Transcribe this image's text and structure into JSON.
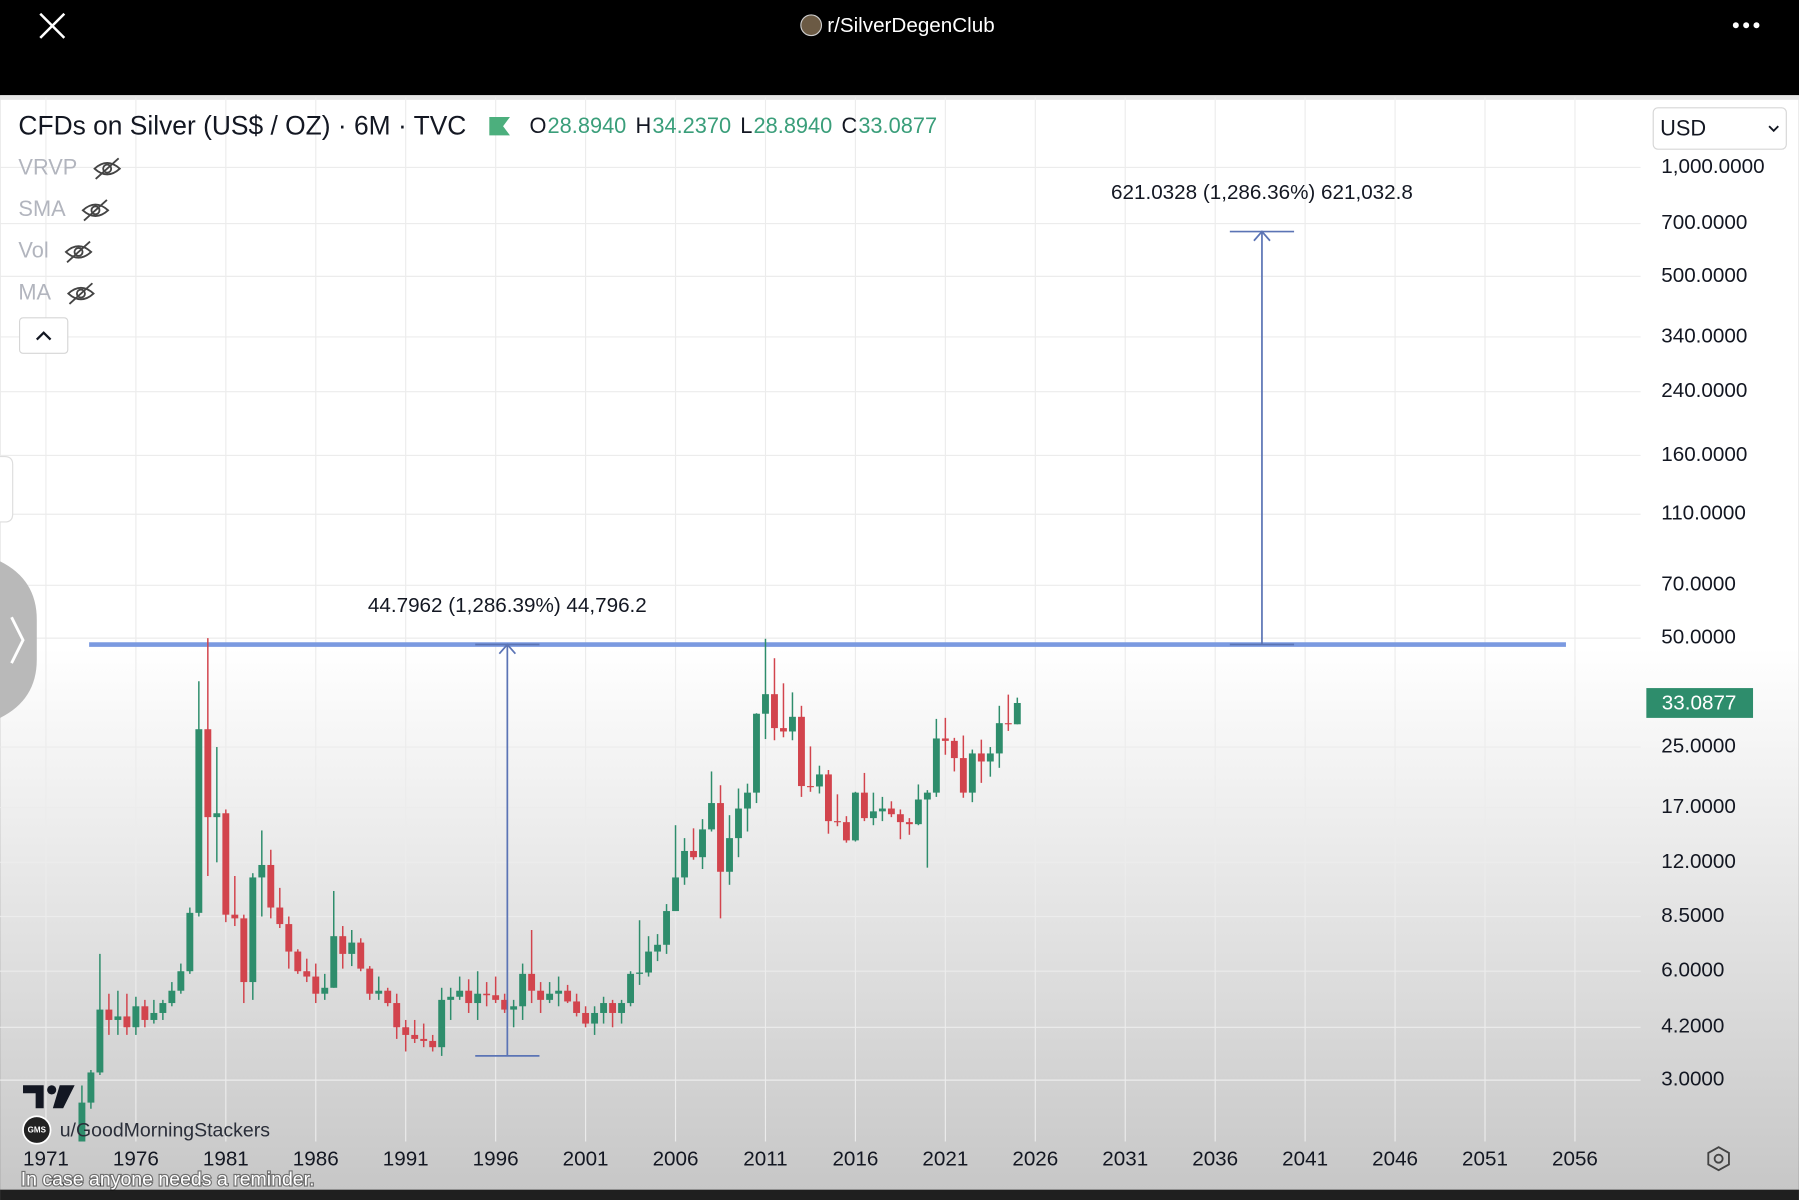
{
  "app_bar": {
    "subreddit": "r/SilverDegenClub"
  },
  "chart_data": {
    "type": "candlestick",
    "title": "CFDs on Silver (US$ / OZ) · 6M · TVC",
    "ohlc": [
      {
        "key": "O",
        "value": 28.894,
        "label": "28.8940"
      },
      {
        "key": "H",
        "value": 34.237,
        "label": "34.2370"
      },
      {
        "key": "L",
        "value": 28.894,
        "label": "28.8940"
      },
      {
        "key": "C",
        "value": 33.0877,
        "label": "33.0877"
      }
    ],
    "indicators": [
      "VRVP",
      "SMA",
      "Vol",
      "MA"
    ],
    "currency": "USD",
    "x": [
      1973,
      1973.5,
      1974,
      1974.5,
      1975,
      1975.5,
      1976,
      1976.5,
      1977,
      1977.5,
      1978,
      1978.5,
      1979,
      1979.5,
      1980,
      1980.5,
      1981,
      1981.5,
      1982,
      1982.5,
      1983,
      1983.5,
      1984,
      1984.5,
      1985,
      1985.5,
      1986,
      1986.5,
      1987,
      1987.5,
      1988,
      1988.5,
      1989,
      1989.5,
      1990,
      1990.5,
      1991,
      1991.5,
      1992,
      1992.5,
      1993,
      1993.5,
      1994,
      1994.5,
      1995,
      1995.5,
      1996,
      1996.5,
      1997,
      1997.5,
      1998,
      1998.5,
      1999,
      1999.5,
      2000,
      2000.5,
      2001,
      2001.5,
      2002,
      2002.5,
      2003,
      2003.5,
      2004,
      2004.5,
      2005,
      2005.5,
      2006,
      2006.5,
      2007,
      2007.5,
      2008,
      2008.5,
      2009,
      2009.5,
      2010,
      2010.5,
      2011,
      2011.5,
      2012,
      2012.5,
      2013,
      2013.5,
      2014,
      2014.5,
      2015,
      2015.5,
      2016,
      2016.5,
      2017,
      2017.5,
      2018,
      2018.5,
      2019,
      2019.5,
      2020,
      2020.5,
      2021,
      2021.5,
      2022,
      2022.5,
      2023,
      2023.5,
      2024,
      2024.5,
      2025
    ],
    "open": [
      1.96,
      2.6,
      3.15,
      4.7,
      4.4,
      4.5,
      4.2,
      4.8,
      4.4,
      4.6,
      4.9,
      5.3,
      6.0,
      8.7,
      28,
      16,
      16.4,
      8.6,
      8.4,
      5.6,
      10.9,
      11.8,
      9.0,
      8.1,
      6.8,
      6.0,
      5.8,
      5.2,
      5.4,
      7.5,
      6.7,
      7.2,
      6.1,
      5.2,
      5.3,
      4.9,
      4.2,
      4.0,
      3.9,
      3.85,
      3.7,
      5.0,
      5.1,
      5.3,
      4.9,
      5.2,
      5.15,
      5.0,
      4.7,
      4.8,
      5.9,
      5.3,
      5.0,
      5.2,
      5.3,
      4.95,
      4.6,
      4.3,
      4.6,
      4.9,
      4.6,
      4.9,
      5.9,
      5.95,
      6.8,
      7.1,
      8.8,
      10.9,
      12.9,
      12.4,
      14.8,
      17.5,
      11.3,
      14.0,
      16.9,
      18.7,
      30.9,
      35.0,
      28.2,
      27.6,
      30.3,
      19.5,
      19.45,
      21.0,
      15.6,
      15.5,
      13.8,
      18.7,
      15.9,
      16.6,
      16.9,
      16.3,
      15.5,
      15.3,
      17.9,
      18.7,
      26.4,
      26.0,
      23.3,
      18.7,
      24.0,
      22.8,
      24.0,
      29.1,
      28.894
    ],
    "high": [
      2.9,
      3.2,
      6.7,
      5.2,
      5.3,
      5.2,
      5.1,
      5.0,
      5.0,
      5.0,
      5.6,
      6.3,
      9.0,
      38,
      50,
      25,
      16.8,
      11,
      8.6,
      11.2,
      14.7,
      13,
      10.2,
      8.5,
      6.9,
      6.5,
      6.3,
      5.9,
      10.0,
      8.0,
      7.8,
      7.4,
      6.2,
      5.8,
      5.4,
      5.2,
      4.4,
      4.4,
      4.3,
      4.0,
      5.4,
      5.4,
      5.8,
      5.7,
      6.0,
      5.6,
      5.8,
      5.2,
      5.0,
      6.3,
      7.8,
      5.6,
      5.6,
      5.8,
      5.5,
      5.2,
      4.8,
      4.8,
      5.1,
      5.0,
      5.0,
      6.0,
      8.3,
      7.5,
      7.6,
      9.2,
      15.2,
      14.0,
      14.9,
      15.8,
      21.4,
      19.6,
      16.2,
      19.2,
      19.8,
      31.0,
      49.8,
      44.0,
      37.5,
      35.4,
      32.5,
      25.1,
      22.2,
      21.6,
      18.5,
      16.1,
      18.8,
      21.2,
      18.7,
      18.2,
      17.7,
      16.8,
      15.9,
      19.7,
      19.0,
      29.9,
      30.1,
      26.5,
      26.9,
      24.6,
      26.2,
      25.0,
      32.5,
      34.9,
      34.237
    ],
    "low": [
      1.95,
      2.5,
      3.1,
      4.0,
      4.0,
      4.0,
      4.0,
      4.2,
      4.3,
      4.4,
      4.8,
      5.2,
      5.9,
      8.5,
      11,
      12,
      8.2,
      8.0,
      4.9,
      5.0,
      8.5,
      8.4,
      7.9,
      6.1,
      5.9,
      5.6,
      4.9,
      5.0,
      5.4,
      6.1,
      6.2,
      6.0,
      5.0,
      5.0,
      4.8,
      3.9,
      3.6,
      3.8,
      3.7,
      3.6,
      3.5,
      4.4,
      5.0,
      4.6,
      4.4,
      4.8,
      4.9,
      4.6,
      4.2,
      4.4,
      4.9,
      4.6,
      4.9,
      4.8,
      4.9,
      4.5,
      4.2,
      4.0,
      4.3,
      4.2,
      4.3,
      4.8,
      5.5,
      5.8,
      6.4,
      6.7,
      8.8,
      10.4,
      12.2,
      11.5,
      14.6,
      8.4,
      10.4,
      12.4,
      14.6,
      17.5,
      26.3,
      26.1,
      26.6,
      26.1,
      18.2,
      18.8,
      18.6,
      14.4,
      15.1,
      13.6,
      13.7,
      15.6,
      15.2,
      15.6,
      16.0,
      13.9,
      14.3,
      15.2,
      11.6,
      18.2,
      23.8,
      21.4,
      18.1,
      17.6,
      19.9,
      20.7,
      21.9,
      27.7,
      28.894
    ],
    "close": [
      2.6,
      3.15,
      4.7,
      4.4,
      4.5,
      4.2,
      4.8,
      4.4,
      4.6,
      4.9,
      5.3,
      6.0,
      8.7,
      28,
      16,
      16.4,
      8.6,
      8.4,
      5.6,
      10.9,
      11.8,
      9.0,
      8.1,
      6.8,
      6.0,
      5.8,
      5.2,
      5.4,
      7.5,
      6.7,
      7.2,
      6.1,
      5.2,
      5.3,
      4.9,
      4.2,
      4.0,
      3.9,
      3.85,
      3.7,
      5.0,
      5.1,
      5.3,
      4.9,
      5.2,
      5.15,
      5.0,
      4.7,
      4.8,
      5.9,
      5.3,
      5.0,
      5.2,
      5.3,
      4.95,
      4.6,
      4.3,
      4.6,
      4.9,
      4.6,
      4.9,
      5.9,
      5.95,
      6.8,
      7.1,
      8.8,
      10.9,
      12.9,
      12.4,
      14.8,
      17.5,
      11.3,
      14.0,
      16.9,
      18.7,
      30.9,
      35.0,
      28.2,
      27.6,
      30.3,
      19.5,
      19.45,
      21.0,
      15.6,
      15.5,
      13.8,
      18.7,
      15.9,
      16.6,
      16.9,
      16.3,
      15.5,
      15.3,
      17.9,
      18.7,
      26.4,
      26.0,
      23.3,
      18.7,
      24.0,
      22.8,
      24.0,
      29.1,
      28.9,
      33.0877
    ],
    "up_color": "#2e8d6c",
    "down_color": "#d2444d",
    "xlim": [
      1968.45,
      2059.65
    ],
    "xticks": [
      1971,
      1976,
      1981,
      1986,
      1991,
      1996,
      2001,
      2006,
      2011,
      2016,
      2021,
      2026,
      2031,
      2036,
      2041,
      2046,
      2051,
      2056
    ],
    "ylim": [
      2.03,
      1561
    ],
    "yticks": [
      {
        "value": 1000,
        "label": "1,000.0000"
      },
      {
        "value": 700,
        "label": "700.0000"
      },
      {
        "value": 500,
        "label": "500.0000"
      },
      {
        "value": 340,
        "label": "340.0000"
      },
      {
        "value": 240,
        "label": "240.0000"
      },
      {
        "value": 160,
        "label": "160.0000"
      },
      {
        "value": 110,
        "label": "110.0000"
      },
      {
        "value": 70,
        "label": "70.0000"
      },
      {
        "value": 50,
        "label": "50.0000"
      },
      {
        "value": 25,
        "label": "25.0000"
      },
      {
        "value": 17,
        "label": "17.0000"
      },
      {
        "value": 12,
        "label": "12.0000"
      },
      {
        "value": 8.5,
        "label": "8.5000"
      },
      {
        "value": 6,
        "label": "6.0000"
      },
      {
        "value": 4.2,
        "label": "4.2000"
      },
      {
        "value": 3,
        "label": "3.0000"
      }
    ],
    "log_scale": true,
    "grid": true,
    "last_price": {
      "value": 33.0877,
      "label": "33.0877"
    },
    "hline": {
      "value": 48,
      "x": [
        1973.4,
        2055.5
      ],
      "color": "#7b9ae0"
    },
    "measurements": [
      {
        "label": "44.7962 (1,286.39%) 44,796.2",
        "x": 1996.65,
        "y": [
          3.5,
          48
        ]
      },
      {
        "label": "621.0328 (1,286.36%) 621,032.8",
        "x": 2038.6,
        "y": [
          48,
          665
        ]
      }
    ]
  },
  "watermark": {
    "avatar": "GMS",
    "user": "u/GoodMorningStackers"
  },
  "caption": "In case anyone needs a reminder."
}
